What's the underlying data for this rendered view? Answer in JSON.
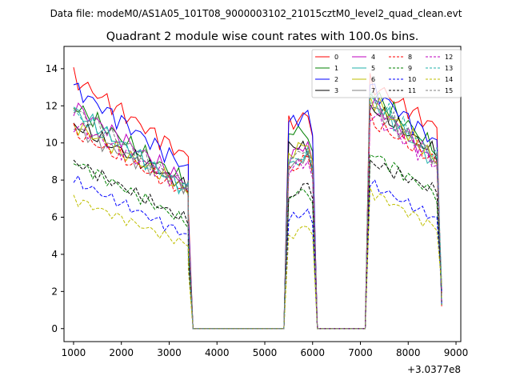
{
  "figure": {
    "suptitle": "Data file: modeM0/AS1A05_101T08_9000003102_21015cztM0_level2_quad_clean.evt"
  },
  "chart_data": {
    "type": "line",
    "title": "Quadrant 2 module wise count rates with 100.0s bins.",
    "xlabel": "",
    "ylabel": "",
    "x_offset_label": "+3.0377e8",
    "xlim": [
      800,
      9100
    ],
    "ylim": [
      -0.7,
      15.2
    ],
    "xticks": [
      1000,
      2000,
      3000,
      4000,
      5000,
      6000,
      7000,
      8000,
      9000
    ],
    "yticks": [
      0,
      2,
      4,
      6,
      8,
      10,
      12,
      14
    ],
    "legend_position": "upper-right",
    "legend_columns": 4,
    "gaps": [
      [
        3500,
        5400
      ],
      [
        6100,
        7100
      ]
    ],
    "segments": [
      {
        "start": 1000,
        "n": 25
      },
      {
        "start": 5500,
        "n": 5
      },
      {
        "start": 7200,
        "n": 15
      }
    ],
    "series": [
      {
        "name": "0",
        "color": "#ff0000",
        "dash": false,
        "seg1": [
          13.5,
          9.2
        ],
        "seg2": [
          11.0,
          11.5
        ],
        "seg3": [
          13.2,
          10.8
        ]
      },
      {
        "name": "1",
        "color": "#008000",
        "dash": false,
        "seg1": [
          12.0,
          7.8
        ],
        "seg2": [
          10.6,
          10.6
        ],
        "seg3": [
          12.8,
          9.6
        ]
      },
      {
        "name": "2",
        "color": "#0000ff",
        "dash": false,
        "seg1": [
          13.0,
          8.6
        ],
        "seg2": [
          11.0,
          11.6
        ],
        "seg3": [
          13.0,
          10.0
        ]
      },
      {
        "name": "3",
        "color": "#000000",
        "dash": false,
        "seg1": [
          11.0,
          7.6
        ],
        "seg2": [
          10.0,
          9.6
        ],
        "seg3": [
          12.0,
          9.4
        ]
      },
      {
        "name": "4",
        "color": "#bf00bf",
        "dash": false,
        "seg1": [
          12.0,
          7.8
        ],
        "seg2": [
          9.2,
          10.0
        ],
        "seg3": [
          12.3,
          9.0
        ]
      },
      {
        "name": "5",
        "color": "#20b2aa",
        "dash": false,
        "seg1": [
          11.8,
          7.4
        ],
        "seg2": [
          8.8,
          9.2
        ],
        "seg3": [
          12.4,
          8.8
        ]
      },
      {
        "name": "6",
        "color": "#bfbf00",
        "dash": false,
        "seg1": [
          11.0,
          7.4
        ],
        "seg2": [
          9.4,
          10.0
        ],
        "seg3": [
          12.5,
          9.0
        ]
      },
      {
        "name": "7",
        "color": "#808080",
        "dash": false,
        "seg1": [
          10.8,
          7.6
        ],
        "seg2": [
          8.6,
          9.4
        ],
        "seg3": [
          12.0,
          9.2
        ]
      },
      {
        "name": "8",
        "color": "#ff0000",
        "dash": true,
        "seg1": [
          10.6,
          7.3
        ],
        "seg2": [
          8.4,
          9.3
        ],
        "seg3": [
          11.2,
          9.0
        ]
      },
      {
        "name": "9",
        "color": "#008000",
        "dash": true,
        "seg1": [
          9.0,
          5.7
        ],
        "seg2": [
          7.1,
          7.5
        ],
        "seg3": [
          9.5,
          7.2
        ]
      },
      {
        "name": "10",
        "color": "#0000ff",
        "dash": true,
        "seg1": [
          8.0,
          5.0
        ],
        "seg2": [
          5.9,
          6.3
        ],
        "seg3": [
          7.8,
          5.9
        ]
      },
      {
        "name": "11",
        "color": "#000000",
        "dash": true,
        "seg1": [
          9.0,
          5.8
        ],
        "seg2": [
          7.0,
          7.8
        ],
        "seg3": [
          9.0,
          7.4
        ]
      },
      {
        "name": "12",
        "color": "#bf00bf",
        "dash": true,
        "seg1": [
          11.0,
          7.6
        ],
        "seg2": [
          8.6,
          9.0
        ],
        "seg3": [
          11.6,
          8.8
        ]
      },
      {
        "name": "13",
        "color": "#20b2aa",
        "dash": true,
        "seg1": [
          11.6,
          7.4
        ],
        "seg2": [
          9.0,
          9.4
        ],
        "seg3": [
          12.6,
          9.2
        ]
      },
      {
        "name": "14",
        "color": "#bfbf00",
        "dash": true,
        "seg1": [
          7.0,
          4.5
        ],
        "seg2": [
          4.9,
          5.6
        ],
        "seg3": [
          7.4,
          5.4
        ]
      },
      {
        "name": "15",
        "color": "#808080",
        "dash": true,
        "seg1": [
          11.8,
          7.6
        ],
        "seg2": [
          9.0,
          9.8
        ],
        "seg3": [
          12.3,
          9.0
        ]
      }
    ]
  }
}
